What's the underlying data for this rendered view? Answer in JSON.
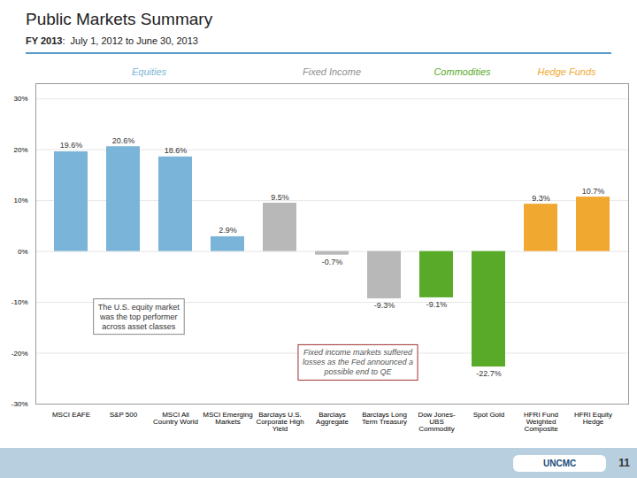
{
  "chart_data": {
    "type": "bar",
    "title": "Public Markets Summary",
    "subtitle": "FY 2013:  July 1, 2012 to June 30, 2013",
    "categories": [
      "MSCI EAFE",
      "S&P 500",
      "MSCI All\nCountry World",
      "MSCI Emerging\nMarkets",
      "Barclays U.S.\nCorporate High\nYield",
      "Barclays\nAggregate",
      "Barclays Long\nTerm Treasury",
      "Dow Jones-\nUBS\nCommodity",
      "Spot Gold",
      "HFRI Fund\nWeighted\nComposite",
      "HFRI Equity\nHedge"
    ],
    "values": [
      19.6,
      20.6,
      18.6,
      2.9,
      9.5,
      -0.7,
      -9.3,
      -9.1,
      -22.7,
      9.3,
      10.7
    ],
    "value_labels": [
      "19.6%",
      "20.6%",
      "18.6%",
      "2.9%",
      "9.5%",
      "-0.7%",
      "-9.3%",
      "-9.1%",
      "-22.7%",
      "9.3%",
      "10.7%"
    ],
    "colors": [
      "#7ab4d8",
      "#7ab4d8",
      "#7ab4d8",
      "#7ab4d8",
      "#b8b8b8",
      "#b8b8b8",
      "#b8b8b8",
      "#5aaa2a",
      "#5aaa2a",
      "#f0a830",
      "#f0a830"
    ],
    "ylim": [
      -30,
      33
    ],
    "yticks": [
      {
        "value": -30,
        "label": "-30%"
      },
      {
        "value": -20,
        "label": "-20%"
      },
      {
        "value": -10,
        "label": "-10%"
      },
      {
        "value": 0,
        "label": "0%"
      },
      {
        "value": 10,
        "label": "10%"
      },
      {
        "value": 20,
        "label": "20%"
      },
      {
        "value": 30,
        "label": "30%"
      }
    ],
    "grid": true,
    "data_labels": true,
    "section_labels": [
      {
        "text": "Equities",
        "color": "#7ab4d8"
      },
      {
        "text": "Fixed Income",
        "color": "#909090"
      },
      {
        "text": "Commodities",
        "color": "#5aaa2a"
      },
      {
        "text": "Hedge Funds",
        "color": "#f0a830"
      }
    ],
    "annotations": [
      "The U.S. equity market\nwas the top performer\nacross asset classes",
      "Fixed income markets suffered\nlosses as the Fed announced a\npossible end to QE"
    ],
    "footer": [
      "UNCMC",
      "11"
    ]
  }
}
